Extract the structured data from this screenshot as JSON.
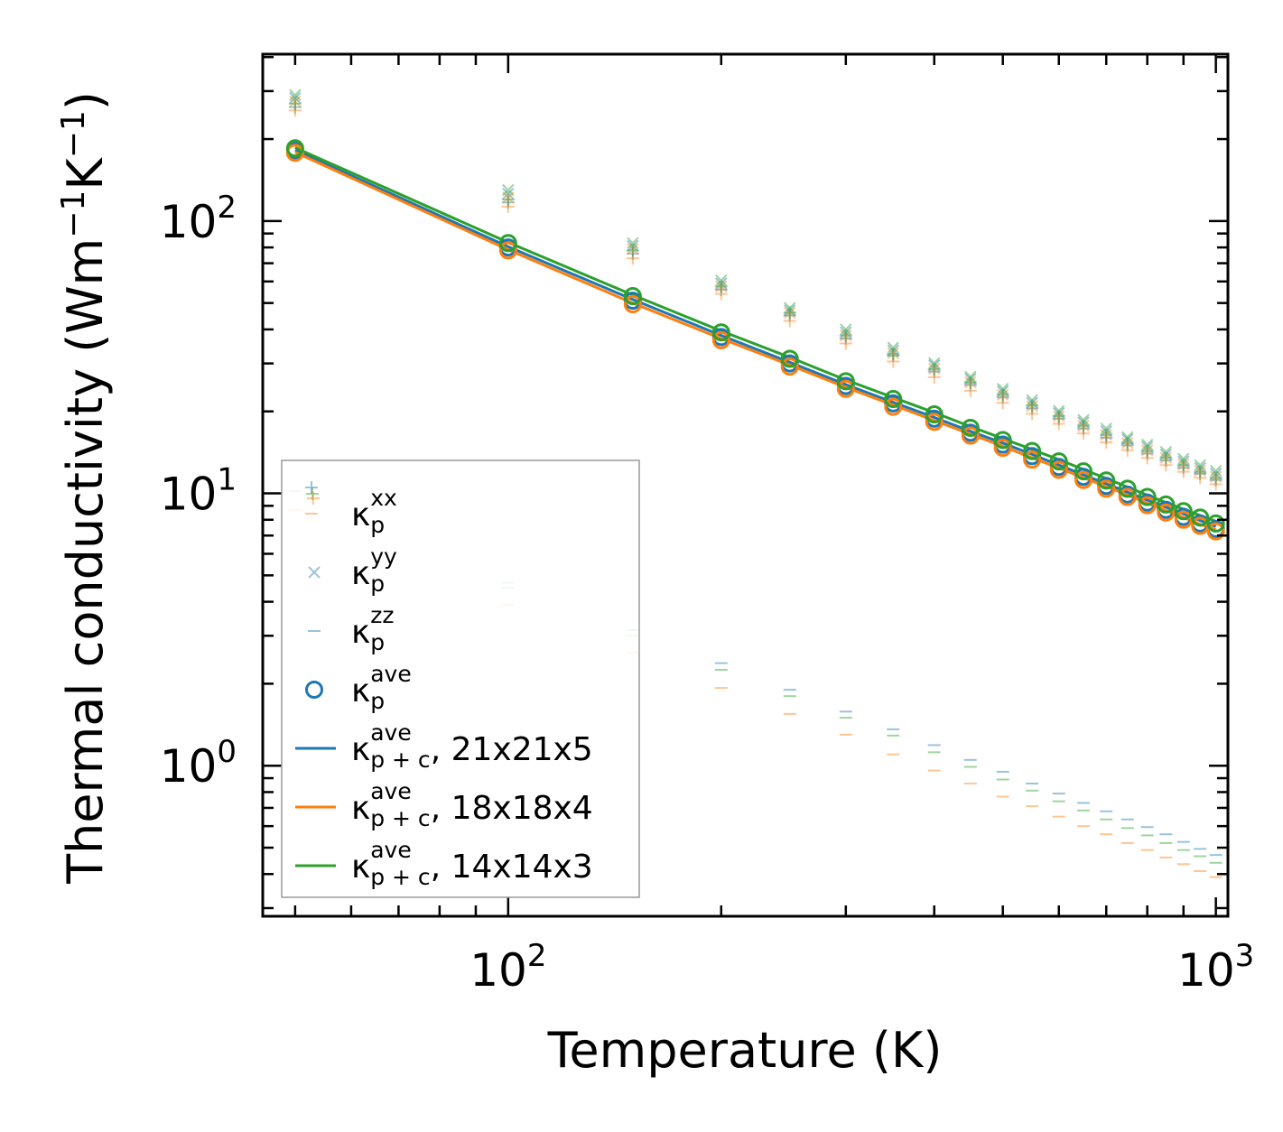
{
  "chart_data": {
    "type": "scatter",
    "xscale": "log",
    "yscale": "log",
    "xlim": [
      45,
      1040
    ],
    "ylim": [
      0.28,
      410
    ],
    "xlabel": "Temperature (K)",
    "ylabel_main": "Thermal conductivity (Wm",
    "ylabel_sup1": "−1",
    "ylabel_mid": "K",
    "ylabel_sup2": "−1",
    "ylabel_end": ")",
    "x_ticks": [
      {
        "value": 100,
        "base": "10",
        "exp": "2"
      },
      {
        "value": 1000,
        "base": "10",
        "exp": "3"
      }
    ],
    "y_ticks": [
      {
        "value": 1,
        "base": "10",
        "exp": "0"
      },
      {
        "value": 10,
        "base": "10",
        "exp": "1"
      },
      {
        "value": 100,
        "base": "10",
        "exp": "2"
      }
    ],
    "temperatures": [
      50,
      100,
      150,
      200,
      250,
      300,
      350,
      400,
      450,
      500,
      550,
      600,
      650,
      700,
      750,
      800,
      850,
      900,
      950,
      1000
    ],
    "series": [
      {
        "name": "21x21x5",
        "color": "#1f77b4",
        "xx": [
          262,
          117,
          76,
          56,
          45,
          37,
          32,
          28,
          25,
          22.5,
          20.5,
          18.8,
          17.3,
          16,
          15,
          14,
          13.2,
          12.4,
          11.8,
          11.2
        ],
        "yy": [
          283,
          126,
          81,
          59,
          47,
          39,
          33.5,
          29.5,
          26.3,
          23.7,
          21.5,
          19.7,
          18.2,
          16.9,
          15.8,
          14.8,
          13.9,
          13.1,
          12.4,
          11.8
        ],
        "zz": [
          null,
          4.7,
          3.15,
          2.38,
          1.9,
          1.58,
          1.36,
          1.19,
          1.05,
          0.95,
          0.86,
          0.79,
          0.73,
          0.68,
          0.635,
          0.595,
          0.56,
          0.525,
          0.495,
          0.47
        ],
        "ave": [
          181,
          80,
          51,
          37.5,
          30,
          24.8,
          21.4,
          18.8,
          16.7,
          15.1,
          13.7,
          12.5,
          11.5,
          10.65,
          9.9,
          9.25,
          8.7,
          8.2,
          7.75,
          7.4
        ],
        "pc": [
          182,
          80.5,
          51.5,
          38,
          30.3,
          25.1,
          21.6,
          19,
          16.9,
          15.3,
          13.9,
          12.7,
          11.7,
          10.85,
          10.1,
          9.45,
          8.9,
          8.4,
          7.95,
          7.55
        ]
      },
      {
        "name": "18x18x4",
        "color": "#ff7f0e",
        "xx": [
          255,
          113,
          73,
          54,
          43,
          35.5,
          30.5,
          26.7,
          23.8,
          21.5,
          19.6,
          18,
          16.6,
          15.4,
          14.4,
          13.5,
          12.7,
          12,
          11.4,
          10.8
        ],
        "yy": [
          275,
          122,
          79,
          57.5,
          46,
          38,
          32.7,
          28.7,
          25.6,
          23,
          20.9,
          19.2,
          17.7,
          16.4,
          15.3,
          14.4,
          13.5,
          12.8,
          12.1,
          11.5
        ],
        "zz": [
          8.7,
          3.9,
          2.6,
          1.93,
          1.55,
          1.3,
          1.1,
          0.96,
          0.86,
          0.77,
          0.71,
          0.65,
          0.6,
          0.56,
          0.52,
          0.49,
          0.46,
          0.435,
          0.41,
          0.39
        ],
        "ave": [
          178,
          78,
          49.5,
          36.5,
          29.2,
          24.2,
          20.8,
          18.3,
          16.3,
          14.7,
          13.3,
          12.2,
          11.2,
          10.4,
          9.7,
          9.05,
          8.5,
          8.0,
          7.6,
          7.25
        ],
        "pc": [
          179,
          78.5,
          50,
          37,
          29.6,
          24.5,
          21.1,
          18.5,
          16.5,
          14.9,
          13.5,
          12.4,
          11.4,
          10.6,
          9.85,
          9.2,
          8.65,
          8.15,
          7.7,
          7.35
        ]
      },
      {
        "name": "14x14x3",
        "color": "#2ca02c",
        "xx": [
          270,
          120,
          78,
          57.5,
          46,
          38,
          32.5,
          28.6,
          25.5,
          23,
          21,
          19.2,
          17.7,
          16.4,
          15.3,
          14.3,
          13.5,
          12.7,
          12,
          11.4
        ],
        "yy": [
          290,
          130,
          83,
          60.5,
          48,
          40,
          34.3,
          30.1,
          26.8,
          24.2,
          22,
          20.1,
          18.6,
          17.3,
          16.1,
          15.1,
          14.2,
          13.4,
          12.7,
          12.1
        ],
        "zz": [
          10.2,
          4.5,
          3.0,
          2.25,
          1.8,
          1.5,
          1.29,
          1.12,
          0.99,
          0.89,
          0.81,
          0.74,
          0.685,
          0.635,
          0.59,
          0.555,
          0.52,
          0.49,
          0.465,
          0.44
        ],
        "ave": [
          185,
          83,
          53,
          39,
          31.2,
          25.8,
          22.2,
          19.5,
          17.4,
          15.7,
          14.3,
          13.1,
          12.05,
          11.15,
          10.4,
          9.7,
          9.1,
          8.6,
          8.15,
          7.75
        ],
        "pc": [
          186,
          83.5,
          53.5,
          39.5,
          31.6,
          26.1,
          22.5,
          19.8,
          17.6,
          15.9,
          14.5,
          13.3,
          12.25,
          11.35,
          10.55,
          9.85,
          9.25,
          8.75,
          8.3,
          7.9
        ]
      }
    ],
    "legend": {
      "position": "lower-left",
      "entries": [
        {
          "kind": "plus",
          "color": "#1f77b4",
          "base": "κ",
          "sub": "p",
          "sup": "xx",
          "text": ""
        },
        {
          "kind": "cross",
          "color": "#1f77b4",
          "base": "κ",
          "sub": "p",
          "sup": "yy",
          "text": ""
        },
        {
          "kind": "dash",
          "color": "#1f77b4",
          "base": "κ",
          "sub": "p",
          "sup": "zz",
          "text": ""
        },
        {
          "kind": "circle",
          "color": "#1f77b4",
          "base": "κ",
          "sub": "p",
          "sup": "ave",
          "text": ""
        },
        {
          "kind": "line",
          "color": "#1f77b4",
          "base": "κ",
          "sub": "p + c",
          "sup": "ave",
          "text": ", 21x21x5"
        },
        {
          "kind": "line",
          "color": "#ff7f0e",
          "base": "κ",
          "sub": "p + c",
          "sup": "ave",
          "text": ", 18x18x4"
        },
        {
          "kind": "line",
          "color": "#2ca02c",
          "base": "κ",
          "sub": "p + c",
          "sup": "ave",
          "text": ", 14x14x3"
        }
      ]
    }
  }
}
